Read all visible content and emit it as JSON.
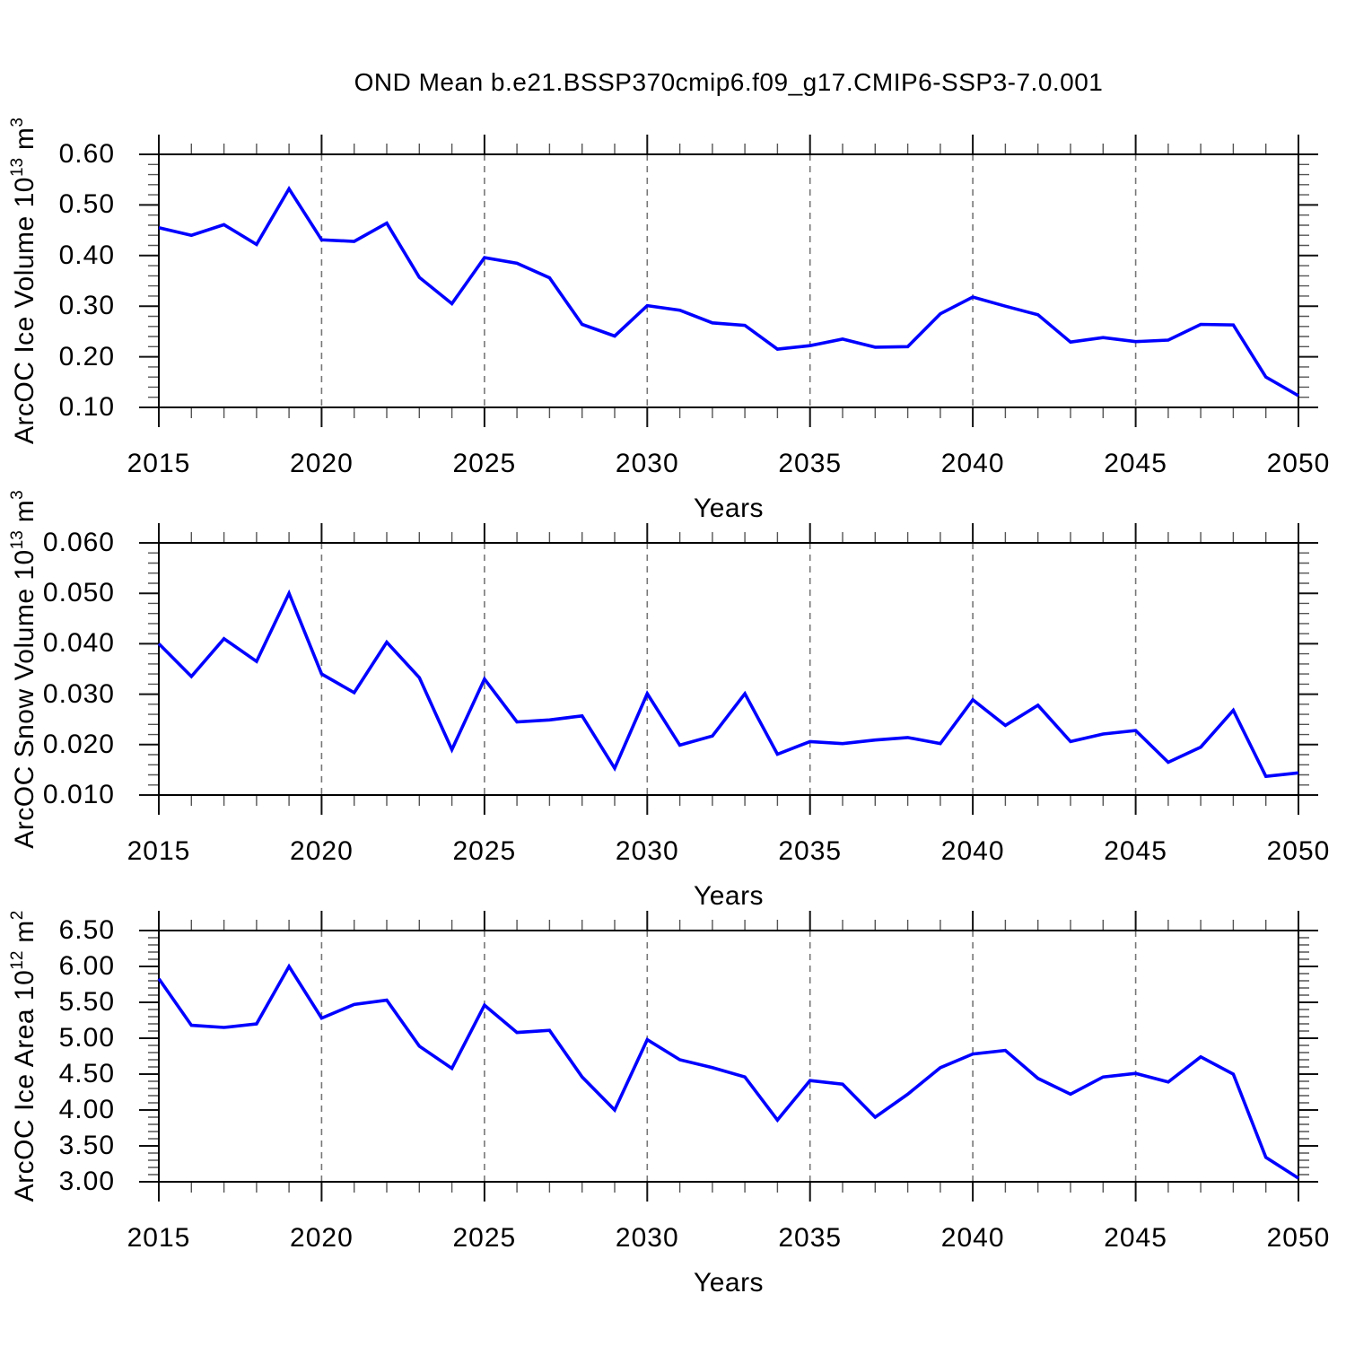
{
  "title": "OND Mean b.e21.BSSP370cmip6.f09_g17.CMIP6-SSP3-7.0.001",
  "colors": {
    "line": "#0000ff",
    "grid": "#777777",
    "frame": "#000000",
    "major_tick": "#111111",
    "minor_tick": "#555555"
  },
  "chart_data": [
    {
      "type": "line",
      "slug": "ice-volume",
      "series_name": "ArcOC Ice Volume",
      "ylabel_text": "ArcOC Ice Volume 10^13 m^3",
      "ylabel_rich": [
        [
          "ArcOC Ice Volume 10",
          false
        ],
        [
          "13",
          true
        ],
        [
          " m",
          false
        ],
        [
          "3",
          true
        ]
      ],
      "xlabel": "Years",
      "xlim": [
        2015,
        2050
      ],
      "ylim": [
        0.1,
        0.6
      ],
      "xticks": [
        2015,
        2020,
        2025,
        2030,
        2035,
        2040,
        2045,
        2050
      ],
      "xtick_labels": [
        "2015",
        "2020",
        "2025",
        "2030",
        "2035",
        "2040",
        "2045",
        "2050"
      ],
      "xminor_step": 1,
      "yticks": [
        0.1,
        0.2,
        0.3,
        0.4,
        0.5,
        0.6
      ],
      "ytick_labels": [
        "0.10",
        "0.20",
        "0.30",
        "0.40",
        "0.50",
        "0.60"
      ],
      "yminor_step": 0.02,
      "gridlines_x": [
        2020,
        2025,
        2030,
        2035,
        2040,
        2045
      ],
      "x": [
        2015,
        2016,
        2017,
        2018,
        2019,
        2020,
        2021,
        2022,
        2023,
        2024,
        2025,
        2026,
        2027,
        2028,
        2029,
        2030,
        2031,
        2032,
        2033,
        2034,
        2035,
        2036,
        2037,
        2038,
        2039,
        2040,
        2041,
        2042,
        2043,
        2044,
        2045,
        2046,
        2047,
        2048,
        2049,
        2050
      ],
      "values": [
        0.455,
        0.44,
        0.461,
        0.422,
        0.532,
        0.431,
        0.428,
        0.464,
        0.357,
        0.305,
        0.396,
        0.385,
        0.356,
        0.264,
        0.241,
        0.301,
        0.292,
        0.267,
        0.262,
        0.215,
        0.222,
        0.235,
        0.219,
        0.22,
        0.285,
        0.318,
        0.3,
        0.283,
        0.229,
        0.238,
        0.23,
        0.233,
        0.264,
        0.263,
        0.16,
        0.123
      ]
    },
    {
      "type": "line",
      "slug": "snow-volume",
      "series_name": "ArcOC Snow Volume",
      "ylabel_text": "ArcOC Snow Volume 10^13 m^3",
      "ylabel_rich": [
        [
          "ArcOC Snow Volume 10",
          false
        ],
        [
          "13",
          true
        ],
        [
          " m",
          false
        ],
        [
          "3",
          true
        ]
      ],
      "xlabel": "Years",
      "xlim": [
        2015,
        2050
      ],
      "ylim": [
        0.01,
        0.06
      ],
      "xticks": [
        2015,
        2020,
        2025,
        2030,
        2035,
        2040,
        2045,
        2050
      ],
      "xtick_labels": [
        "2015",
        "2020",
        "2025",
        "2030",
        "2035",
        "2040",
        "2045",
        "2050"
      ],
      "xminor_step": 1,
      "yticks": [
        0.01,
        0.02,
        0.03,
        0.04,
        0.05,
        0.06
      ],
      "ytick_labels": [
        "0.010",
        "0.020",
        "0.030",
        "0.040",
        "0.050",
        "0.060"
      ],
      "yminor_step": 0.002,
      "gridlines_x": [
        2020,
        2025,
        2030,
        2035,
        2040,
        2045
      ],
      "x": [
        2015,
        2016,
        2017,
        2018,
        2019,
        2020,
        2021,
        2022,
        2023,
        2024,
        2025,
        2026,
        2027,
        2028,
        2029,
        2030,
        2031,
        2032,
        2033,
        2034,
        2035,
        2036,
        2037,
        2038,
        2039,
        2040,
        2041,
        2042,
        2043,
        2044,
        2045,
        2046,
        2047,
        2048,
        2049,
        2050
      ],
      "values": [
        0.04,
        0.0335,
        0.041,
        0.0365,
        0.05,
        0.034,
        0.0303,
        0.0403,
        0.0333,
        0.019,
        0.033,
        0.0245,
        0.0249,
        0.0257,
        0.0153,
        0.0301,
        0.0199,
        0.0217,
        0.0301,
        0.0181,
        0.0206,
        0.0202,
        0.0209,
        0.0214,
        0.0202,
        0.0289,
        0.0238,
        0.0278,
        0.0206,
        0.0221,
        0.0228,
        0.0165,
        0.0195,
        0.0268,
        0.0137,
        0.0144
      ]
    },
    {
      "type": "line",
      "slug": "ice-area",
      "series_name": "ArcOC Ice Area",
      "ylabel_text": "ArcOC Ice Area 10^12 m^2",
      "ylabel_rich": [
        [
          "ArcOC Ice Area 10",
          false
        ],
        [
          "12",
          true
        ],
        [
          " m",
          false
        ],
        [
          "2",
          true
        ]
      ],
      "xlabel": "Years",
      "xlim": [
        2015,
        2050
      ],
      "ylim": [
        3.0,
        6.5
      ],
      "xticks": [
        2015,
        2020,
        2025,
        2030,
        2035,
        2040,
        2045,
        2050
      ],
      "xtick_labels": [
        "2015",
        "2020",
        "2025",
        "2030",
        "2035",
        "2040",
        "2045",
        "2050"
      ],
      "xminor_step": 1,
      "yticks": [
        3.0,
        3.5,
        4.0,
        4.5,
        5.0,
        5.5,
        6.0,
        6.5
      ],
      "ytick_labels": [
        "3.00",
        "3.50",
        "4.00",
        "4.50",
        "5.00",
        "5.50",
        "6.00",
        "6.50"
      ],
      "yminor_step": 0.1,
      "gridlines_x": [
        2020,
        2025,
        2030,
        2035,
        2040,
        2045
      ],
      "x": [
        2015,
        2016,
        2017,
        2018,
        2019,
        2020,
        2021,
        2022,
        2023,
        2024,
        2025,
        2026,
        2027,
        2028,
        2029,
        2030,
        2031,
        2032,
        2033,
        2034,
        2035,
        2036,
        2037,
        2038,
        2039,
        2040,
        2041,
        2042,
        2043,
        2044,
        2045,
        2046,
        2047,
        2048,
        2049,
        2050
      ],
      "values": [
        5.83,
        5.18,
        5.15,
        5.2,
        6.0,
        5.28,
        5.47,
        5.53,
        4.89,
        4.58,
        5.46,
        5.08,
        5.11,
        4.46,
        4.0,
        4.98,
        4.7,
        4.59,
        4.46,
        3.86,
        4.41,
        4.36,
        3.9,
        4.22,
        4.59,
        4.78,
        4.83,
        4.44,
        4.22,
        4.46,
        4.51,
        4.39,
        4.74,
        4.5,
        3.34,
        3.05
      ]
    }
  ]
}
